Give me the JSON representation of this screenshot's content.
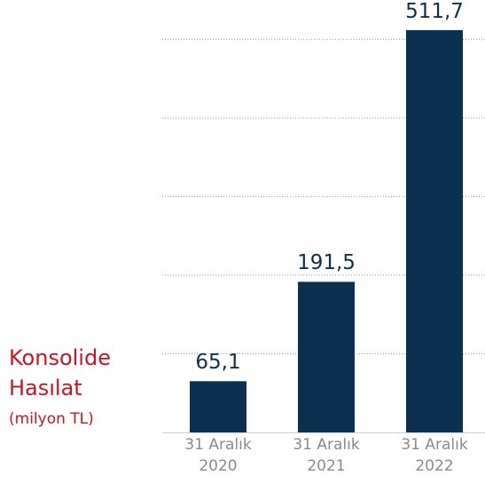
{
  "chart_data": {
    "type": "bar",
    "title": "Konsolide Hasılat",
    "subtitle": "(milyon TL)",
    "categories": [
      "31 Aralık 2020",
      "31 Aralık 2021",
      "31 Aralık 2022"
    ],
    "values": [
      65.1,
      191.5,
      511.7
    ],
    "value_labels": [
      "65,1",
      "191,5",
      "511,7"
    ],
    "color": "#0c3050",
    "ylim": [
      0,
      550
    ],
    "yticks": [
      100,
      200,
      300,
      400,
      500
    ],
    "grid": true
  }
}
